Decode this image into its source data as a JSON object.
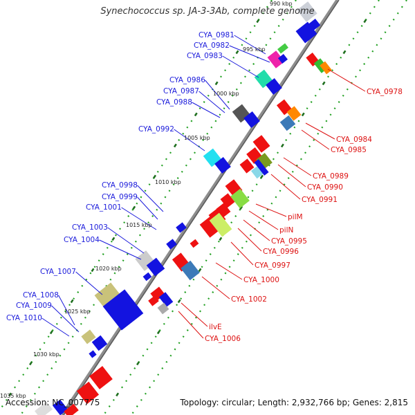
{
  "title": "Synechococcus sp. JA-3-3Ab, complete genome",
  "footer": {
    "accession": "Accession: NC_007775",
    "topology": "Topology: circular; Length: 2,932,766 bp; Genes: 2,815"
  },
  "colors": {
    "left_label": "#1a1adb",
    "right_label": "#dd1111",
    "backbone": "#8a8a8a"
  },
  "kbp_marks": [
    "995 kbp",
    "1000 kbp",
    "1005 kbp",
    "1010 kbp",
    "1015 kbp",
    "1020 kbp",
    "1025 kbp",
    "1030 kbp",
    "1035 kbp",
    "990 kbp"
  ],
  "left_labels": [
    "CYA_0981",
    "CYA_0982",
    "CYA_0983",
    "CYA_0986",
    "CYA_0987",
    "CYA_0988",
    "CYA_0992",
    "CYA_0998",
    "CYA_0999",
    "CYA_1001",
    "CYA_1003",
    "CYA_1004",
    "CYA_1007",
    "CYA_1008",
    "CYA_1009",
    "CYA_1010"
  ],
  "right_labels": [
    "CYA_0978",
    "CYA_0984",
    "CYA_0985",
    "CYA_0989",
    "CYA_0990",
    "CYA_0991",
    "pilM",
    "pilN",
    "CYA_0995",
    "CYA_0996",
    "CYA_0997",
    "CYA_1000",
    "CYA_1002",
    "ilvE",
    "CYA_1006"
  ]
}
